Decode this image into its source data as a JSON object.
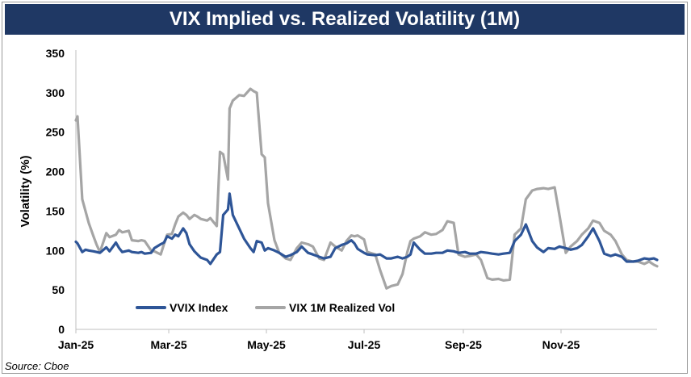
{
  "chart_data": {
    "type": "line",
    "title": "VIX Implied vs. Realized Volatility (1M)",
    "ylabel": "Volatility (%)",
    "xlabel": "",
    "ylim": [
      0,
      350
    ],
    "yticks": [
      "0",
      "50",
      "100",
      "150",
      "200",
      "250",
      "300",
      "350"
    ],
    "xticks": [
      "Jan-25",
      "Mar-25",
      "May-25",
      "Jul-25",
      "Sep-25",
      "Nov-25"
    ],
    "x_range": [
      "2025-01-02",
      "2025-12-31"
    ],
    "legend_position": "bottom-left",
    "grid": false,
    "series": [
      {
        "name": "VVIX Index",
        "color": "#2e5597",
        "points": [
          [
            "2025-01-02",
            111
          ],
          [
            "2025-01-03",
            109
          ],
          [
            "2025-01-06",
            98
          ],
          [
            "2025-01-08",
            101
          ],
          [
            "2025-01-10",
            100
          ],
          [
            "2025-01-13",
            99
          ],
          [
            "2025-01-15",
            98
          ],
          [
            "2025-01-17",
            97
          ],
          [
            "2025-01-21",
            104
          ],
          [
            "2025-01-23",
            99
          ],
          [
            "2025-01-27",
            110
          ],
          [
            "2025-01-29",
            103
          ],
          [
            "2025-01-31",
            98
          ],
          [
            "2025-02-04",
            100
          ],
          [
            "2025-02-06",
            98
          ],
          [
            "2025-02-10",
            97
          ],
          [
            "2025-02-12",
            98
          ],
          [
            "2025-02-14",
            96
          ],
          [
            "2025-02-18",
            97
          ],
          [
            "2025-02-20",
            103
          ],
          [
            "2025-02-24",
            108
          ],
          [
            "2025-02-26",
            110
          ],
          [
            "2025-02-28",
            118
          ],
          [
            "2025-03-03",
            115
          ],
          [
            "2025-03-05",
            120
          ],
          [
            "2025-03-07",
            118
          ],
          [
            "2025-03-10",
            128
          ],
          [
            "2025-03-12",
            122
          ],
          [
            "2025-03-14",
            108
          ],
          [
            "2025-03-17",
            99
          ],
          [
            "2025-03-19",
            95
          ],
          [
            "2025-03-21",
            91
          ],
          [
            "2025-03-25",
            88
          ],
          [
            "2025-03-27",
            83
          ],
          [
            "2025-03-31",
            95
          ],
          [
            "2025-04-02",
            98
          ],
          [
            "2025-04-04",
            145
          ],
          [
            "2025-04-07",
            152
          ],
          [
            "2025-04-08",
            172
          ],
          [
            "2025-04-10",
            145
          ],
          [
            "2025-04-14",
            128
          ],
          [
            "2025-04-17",
            115
          ],
          [
            "2025-04-21",
            103
          ],
          [
            "2025-04-23",
            98
          ],
          [
            "2025-04-25",
            112
          ],
          [
            "2025-04-28",
            110
          ],
          [
            "2025-04-30",
            100
          ],
          [
            "2025-05-02",
            103
          ],
          [
            "2025-05-06",
            100
          ],
          [
            "2025-05-09",
            97
          ],
          [
            "2025-05-13",
            92
          ],
          [
            "2025-05-16",
            94
          ],
          [
            "2025-05-20",
            98
          ],
          [
            "2025-05-23",
            105
          ],
          [
            "2025-05-27",
            97
          ],
          [
            "2025-05-30",
            95
          ],
          [
            "2025-06-03",
            92
          ],
          [
            "2025-06-06",
            90
          ],
          [
            "2025-06-10",
            92
          ],
          [
            "2025-06-13",
            103
          ],
          [
            "2025-06-17",
            107
          ],
          [
            "2025-06-20",
            109
          ],
          [
            "2025-06-23",
            113
          ],
          [
            "2025-06-25",
            109
          ],
          [
            "2025-06-27",
            102
          ],
          [
            "2025-07-01",
            97
          ],
          [
            "2025-07-03",
            95
          ],
          [
            "2025-07-08",
            94
          ],
          [
            "2025-07-11",
            95
          ],
          [
            "2025-07-15",
            90
          ],
          [
            "2025-07-18",
            90
          ],
          [
            "2025-07-22",
            92
          ],
          [
            "2025-07-25",
            90
          ],
          [
            "2025-07-28",
            92
          ],
          [
            "2025-07-30",
            95
          ],
          [
            "2025-08-01",
            110
          ],
          [
            "2025-08-05",
            101
          ],
          [
            "2025-08-08",
            96
          ],
          [
            "2025-08-12",
            96
          ],
          [
            "2025-08-15",
            97
          ],
          [
            "2025-08-19",
            97
          ],
          [
            "2025-08-22",
            100
          ],
          [
            "2025-08-26",
            99
          ],
          [
            "2025-08-29",
            97
          ],
          [
            "2025-09-02",
            98
          ],
          [
            "2025-09-05",
            96
          ],
          [
            "2025-09-09",
            96
          ],
          [
            "2025-09-12",
            98
          ],
          [
            "2025-09-16",
            97
          ],
          [
            "2025-09-19",
            96
          ],
          [
            "2025-09-23",
            95
          ],
          [
            "2025-09-26",
            96
          ],
          [
            "2025-09-30",
            97
          ],
          [
            "2025-10-03",
            112
          ],
          [
            "2025-10-07",
            120
          ],
          [
            "2025-10-10",
            133
          ],
          [
            "2025-10-14",
            112
          ],
          [
            "2025-10-17",
            104
          ],
          [
            "2025-10-21",
            98
          ],
          [
            "2025-10-24",
            103
          ],
          [
            "2025-10-28",
            102
          ],
          [
            "2025-10-31",
            105
          ],
          [
            "2025-11-04",
            103
          ],
          [
            "2025-11-07",
            101
          ],
          [
            "2025-11-11",
            103
          ],
          [
            "2025-11-14",
            107
          ],
          [
            "2025-11-18",
            118
          ],
          [
            "2025-11-21",
            128
          ],
          [
            "2025-11-25",
            112
          ],
          [
            "2025-11-28",
            96
          ],
          [
            "2025-12-02",
            93
          ],
          [
            "2025-12-05",
            95
          ],
          [
            "2025-12-09",
            92
          ],
          [
            "2025-12-12",
            86
          ],
          [
            "2025-12-16",
            86
          ],
          [
            "2025-12-19",
            87
          ],
          [
            "2025-12-23",
            90
          ],
          [
            "2025-12-26",
            89
          ],
          [
            "2025-12-29",
            90
          ],
          [
            "2025-12-31",
            88
          ]
        ]
      },
      {
        "name": "VIX 1M Realized Vol",
        "color": "#a5a5a5",
        "points": [
          [
            "2025-01-02",
            265
          ],
          [
            "2025-01-03",
            270
          ],
          [
            "2025-01-06",
            165
          ],
          [
            "2025-01-08",
            150
          ],
          [
            "2025-01-10",
            135
          ],
          [
            "2025-01-13",
            118
          ],
          [
            "2025-01-15",
            107
          ],
          [
            "2025-01-17",
            98
          ],
          [
            "2025-01-21",
            122
          ],
          [
            "2025-01-23",
            117
          ],
          [
            "2025-01-27",
            120
          ],
          [
            "2025-01-29",
            126
          ],
          [
            "2025-01-31",
            123
          ],
          [
            "2025-02-04",
            125
          ],
          [
            "2025-02-06",
            113
          ],
          [
            "2025-02-10",
            112
          ],
          [
            "2025-02-12",
            113
          ],
          [
            "2025-02-14",
            112
          ],
          [
            "2025-02-18",
            100
          ],
          [
            "2025-02-20",
            99
          ],
          [
            "2025-02-24",
            95
          ],
          [
            "2025-02-26",
            108
          ],
          [
            "2025-02-28",
            120
          ],
          [
            "2025-03-03",
            121
          ],
          [
            "2025-03-05",
            133
          ],
          [
            "2025-03-07",
            143
          ],
          [
            "2025-03-10",
            148
          ],
          [
            "2025-03-12",
            145
          ],
          [
            "2025-03-14",
            140
          ],
          [
            "2025-03-17",
            145
          ],
          [
            "2025-03-19",
            143
          ],
          [
            "2025-03-21",
            140
          ],
          [
            "2025-03-25",
            138
          ],
          [
            "2025-03-27",
            141
          ],
          [
            "2025-03-31",
            131
          ],
          [
            "2025-04-02",
            225
          ],
          [
            "2025-04-04",
            222
          ],
          [
            "2025-04-07",
            190
          ],
          [
            "2025-04-08",
            280
          ],
          [
            "2025-04-10",
            290
          ],
          [
            "2025-04-14",
            297
          ],
          [
            "2025-04-17",
            296
          ],
          [
            "2025-04-21",
            305
          ],
          [
            "2025-04-23",
            302
          ],
          [
            "2025-04-25",
            300
          ],
          [
            "2025-04-28",
            222
          ],
          [
            "2025-04-30",
            218
          ],
          [
            "2025-05-02",
            160
          ],
          [
            "2025-05-06",
            113
          ],
          [
            "2025-05-09",
            97
          ],
          [
            "2025-05-13",
            90
          ],
          [
            "2025-05-16",
            88
          ],
          [
            "2025-05-20",
            103
          ],
          [
            "2025-05-23",
            110
          ],
          [
            "2025-05-27",
            108
          ],
          [
            "2025-05-30",
            105
          ],
          [
            "2025-06-03",
            90
          ],
          [
            "2025-06-06",
            88
          ],
          [
            "2025-06-10",
            110
          ],
          [
            "2025-06-13",
            105
          ],
          [
            "2025-06-17",
            100
          ],
          [
            "2025-06-20",
            112
          ],
          [
            "2025-06-23",
            119
          ],
          [
            "2025-06-25",
            118
          ],
          [
            "2025-06-27",
            119
          ],
          [
            "2025-07-01",
            114
          ],
          [
            "2025-07-03",
            98
          ],
          [
            "2025-07-08",
            95
          ],
          [
            "2025-07-11",
            75
          ],
          [
            "2025-07-15",
            52
          ],
          [
            "2025-07-18",
            55
          ],
          [
            "2025-07-22",
            57
          ],
          [
            "2025-07-25",
            70
          ],
          [
            "2025-07-28",
            98
          ],
          [
            "2025-07-30",
            112
          ],
          [
            "2025-08-01",
            115
          ],
          [
            "2025-08-05",
            118
          ],
          [
            "2025-08-08",
            123
          ],
          [
            "2025-08-12",
            120
          ],
          [
            "2025-08-15",
            121
          ],
          [
            "2025-08-19",
            126
          ],
          [
            "2025-08-22",
            137
          ],
          [
            "2025-08-26",
            135
          ],
          [
            "2025-08-29",
            95
          ],
          [
            "2025-09-02",
            92
          ],
          [
            "2025-09-05",
            93
          ],
          [
            "2025-09-09",
            95
          ],
          [
            "2025-09-12",
            88
          ],
          [
            "2025-09-16",
            65
          ],
          [
            "2025-09-19",
            63
          ],
          [
            "2025-09-23",
            64
          ],
          [
            "2025-09-26",
            62
          ],
          [
            "2025-09-30",
            63
          ],
          [
            "2025-10-03",
            120
          ],
          [
            "2025-10-07",
            128
          ],
          [
            "2025-10-10",
            165
          ],
          [
            "2025-10-14",
            176
          ],
          [
            "2025-10-17",
            178
          ],
          [
            "2025-10-21",
            179
          ],
          [
            "2025-10-24",
            178
          ],
          [
            "2025-10-28",
            180
          ],
          [
            "2025-10-31",
            145
          ],
          [
            "2025-11-04",
            97
          ],
          [
            "2025-11-07",
            105
          ],
          [
            "2025-11-11",
            112
          ],
          [
            "2025-11-14",
            120
          ],
          [
            "2025-11-18",
            128
          ],
          [
            "2025-11-21",
            138
          ],
          [
            "2025-11-25",
            135
          ],
          [
            "2025-11-28",
            125
          ],
          [
            "2025-12-02",
            120
          ],
          [
            "2025-12-05",
            112
          ],
          [
            "2025-12-09",
            95
          ],
          [
            "2025-12-12",
            88
          ],
          [
            "2025-12-16",
            86
          ],
          [
            "2025-12-19",
            86
          ],
          [
            "2025-12-23",
            83
          ],
          [
            "2025-12-26",
            86
          ],
          [
            "2025-12-29",
            82
          ],
          [
            "2025-12-31",
            80
          ]
        ]
      }
    ]
  },
  "source": "Source: Cboe"
}
